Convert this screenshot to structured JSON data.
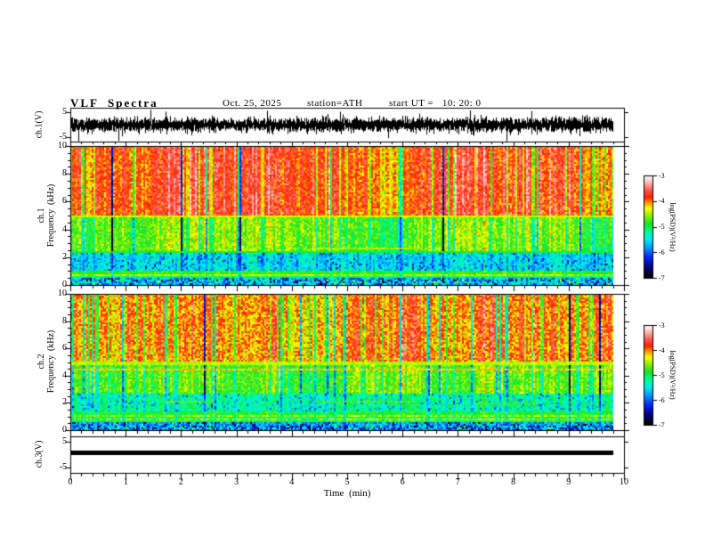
{
  "title": {
    "main": "VLF  Spectra",
    "date": "Oct. 25, 2025",
    "station": "station=ATH",
    "start_ut": "start UT =   10: 20: 0"
  },
  "colors": {
    "background": "#ffffff",
    "axis": "#000000",
    "trace": "#000000"
  },
  "axes": {
    "time": {
      "label": "Time  (min)",
      "min": 0,
      "max": 10,
      "minor_step": 0.2,
      "ticks": [
        "0",
        "1",
        "2",
        "3",
        "4",
        "5",
        "6",
        "7",
        "8",
        "9",
        "10"
      ],
      "tick_values": [
        0,
        1,
        2,
        3,
        4,
        5,
        6,
        7,
        8,
        9,
        10
      ]
    },
    "wf1": {
      "label": "ch.1(V)",
      "ticks": [
        "5",
        "-5"
      ],
      "tick_values": [
        5,
        -5
      ],
      "range": [
        -7,
        7
      ]
    },
    "sp1": {
      "label1": "ch.1",
      "label2": "Frequency  (kHz)",
      "ticks": [
        "10",
        "8",
        "6",
        "4",
        "2",
        "0"
      ],
      "tick_values": [
        10,
        8,
        6,
        4,
        2,
        0
      ],
      "range": [
        0,
        10
      ],
      "minor_step": 0.5
    },
    "sp2": {
      "label1": "ch.2",
      "label2": "Frequency  (kHz)",
      "ticks": [
        "10",
        "8",
        "6",
        "4",
        "2",
        "0"
      ],
      "tick_values": [
        10,
        8,
        6,
        4,
        2,
        0
      ],
      "range": [
        0,
        10
      ],
      "minor_step": 0.5
    },
    "ch3": {
      "label": "ch.3(V)",
      "ticks": [
        "5",
        "-5"
      ],
      "tick_values": [
        5,
        -5
      ],
      "range": [
        -7,
        7
      ]
    }
  },
  "colorbar": {
    "label": "log(PSD)(V²/Hz)",
    "ticks": [
      "-3",
      "-4",
      "-5",
      "-6",
      "-7"
    ],
    "tick_values": [
      -3,
      -4,
      -5,
      -6,
      -7
    ],
    "min": -7,
    "max": -3,
    "gradient": [
      {
        "t": 0.0,
        "color": "#000000"
      },
      {
        "t": 0.1,
        "color": "#000080"
      },
      {
        "t": 0.2,
        "color": "#0028ff"
      },
      {
        "t": 0.3,
        "color": "#00a0ff"
      },
      {
        "t": 0.38,
        "color": "#00f0f0"
      },
      {
        "t": 0.46,
        "color": "#00ff80"
      },
      {
        "t": 0.53,
        "color": "#18e428"
      },
      {
        "t": 0.62,
        "color": "#a0f000"
      },
      {
        "t": 0.68,
        "color": "#ffff00"
      },
      {
        "t": 0.74,
        "color": "#ff9000"
      },
      {
        "t": 0.79,
        "color": "#ff2000"
      },
      {
        "t": 0.86,
        "color": "#ff5a50"
      },
      {
        "t": 0.93,
        "color": "#ffb4b0"
      },
      {
        "t": 1.0,
        "color": "#ffffff"
      }
    ]
  },
  "chart_data": [
    {
      "type": "line",
      "name": "ch1-waveform",
      "ylabel": "ch.1(V)",
      "xlim": [
        0,
        10
      ],
      "ylim": [
        -7,
        7
      ],
      "x_extent_min": [
        0,
        9.8
      ],
      "description": "broadband VLF noise centered on 0 V, typical amplitude ±2 V with spikes to ±5 V",
      "color": "#000000",
      "noise_sigma": 1.25,
      "spike_prob": 0.015,
      "spike_gain": 2.6
    },
    {
      "type": "heatmap",
      "name": "ch1-spectrogram",
      "ylabel": "ch.1 Frequency (kHz)",
      "xlim": [
        0,
        10
      ],
      "ylim": [
        0,
        10
      ],
      "zlim": [
        -7,
        -3
      ],
      "zlabel": "log(PSD)(V²/Hz)",
      "x_extent_min": [
        0,
        9.8
      ],
      "bands": [
        {
          "f": [
            5.0,
            10.0
          ],
          "psd": -3.9,
          "noise": 0.28,
          "gain": 1.0,
          "kind": "plain"
        },
        {
          "f": [
            2.3,
            5.0
          ],
          "psd": -4.75,
          "noise": 0.3,
          "gain": 0.85,
          "kind": "plain"
        },
        {
          "f": [
            1.05,
            2.3
          ],
          "psd": -5.55,
          "noise": 0.3,
          "gain": 0.3,
          "kind": "blotch"
        },
        {
          "f": [
            0.5,
            1.05
          ],
          "psd": -4.9,
          "noise": 0.2,
          "gain": 0.25,
          "kind": "stripes"
        },
        {
          "f": [
            0.0,
            0.5
          ],
          "psd": -5.7,
          "noise": 0.6,
          "gain": 0.2,
          "kind": "speckle"
        }
      ],
      "hlines": [
        {
          "f": 4.92,
          "psd": -4.4,
          "x": [
            0,
            9.8
          ]
        },
        {
          "f": 2.35,
          "psd": -4.95,
          "x": [
            0,
            9.8
          ]
        },
        {
          "f": 2.65,
          "psd": -4.5,
          "x": [
            4.4,
            6.3
          ]
        }
      ]
    },
    {
      "type": "heatmap",
      "name": "ch2-spectrogram",
      "ylabel": "ch.2 Frequency (kHz)",
      "xlim": [
        0,
        10
      ],
      "ylim": [
        0,
        10
      ],
      "zlim": [
        -7,
        -3
      ],
      "zlabel": "log(PSD)(V²/Hz)",
      "x_extent_min": [
        0,
        9.8
      ],
      "bands": [
        {
          "f": [
            5.0,
            10.0
          ],
          "psd": -4.0,
          "noise": 0.38,
          "gain": 1.0,
          "kind": "plain"
        },
        {
          "f": [
            2.7,
            5.0
          ],
          "psd": -4.7,
          "noise": 0.3,
          "gain": 0.8,
          "kind": "plain"
        },
        {
          "f": [
            1.35,
            2.7
          ],
          "psd": -5.2,
          "noise": 0.28,
          "gain": 0.35,
          "kind": "blotch"
        },
        {
          "f": [
            0.6,
            1.35
          ],
          "psd": -4.95,
          "noise": 0.25,
          "gain": 0.25,
          "kind": "stripes"
        },
        {
          "f": [
            0.3,
            0.6
          ],
          "psd": -5.8,
          "noise": 0.35,
          "gain": 0.2,
          "kind": "speckle"
        },
        {
          "f": [
            0.0,
            0.3
          ],
          "psd": -5.9,
          "noise": 0.7,
          "gain": 0.2,
          "kind": "speckle"
        }
      ],
      "hlines": [
        {
          "f": 4.45,
          "psd": -4.15,
          "x": [
            0,
            9.8
          ]
        },
        {
          "f": 4.9,
          "psd": -4.45,
          "x": [
            0,
            9.8
          ]
        },
        {
          "f": 2.1,
          "psd": -4.7,
          "x": [
            1.7,
            2.6
          ]
        },
        {
          "f": 2.1,
          "psd": -4.7,
          "x": [
            4.4,
            6.2
          ]
        },
        {
          "f": 1.95,
          "psd": -4.75,
          "x": [
            7.3,
            8.4
          ]
        }
      ]
    },
    {
      "type": "line",
      "name": "ch3-waveform",
      "ylabel": "ch.3(V)",
      "xlim": [
        0,
        10
      ],
      "ylim": [
        -7,
        7
      ],
      "x_extent_min": [
        0,
        9.8
      ],
      "description": "constant 0 V flat trace",
      "color": "#000000",
      "value": 0
    }
  ]
}
